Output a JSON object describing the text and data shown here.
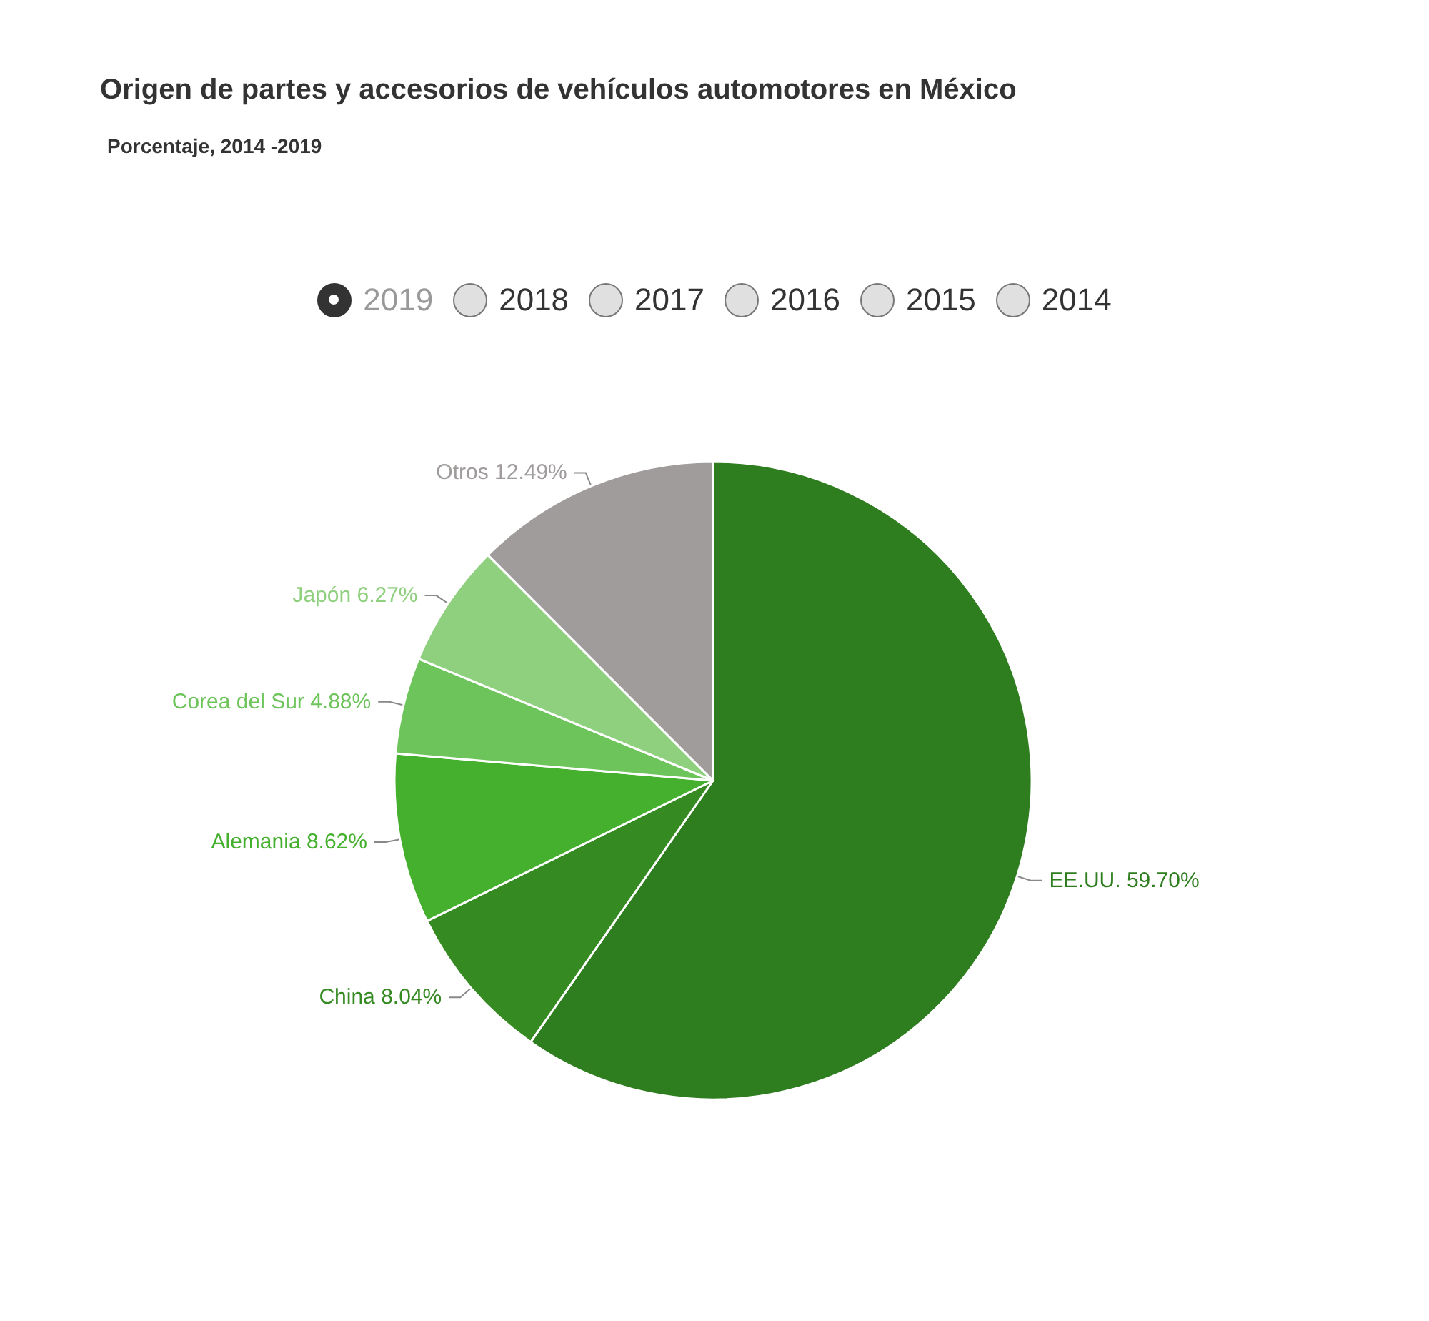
{
  "chart_data": {
    "type": "pie",
    "title": "Origen de partes y accesorios de vehículos automotores en México",
    "subtitle": "Porcentaje, 2014 -2019",
    "annotations": [
      "2019",
      "2018",
      "2017",
      "2016",
      "2015",
      "2014"
    ],
    "categories": [
      "EE.UU.",
      "China",
      "Alemania",
      "Corea del Sur",
      "Japón",
      "Otros"
    ],
    "values": [
      59.7,
      8.04,
      8.62,
      4.88,
      6.27,
      12.49
    ],
    "value_labels": [
      "59.70%",
      "8.04%",
      "8.62%",
      "4.88%",
      "6.27%",
      "12.49%"
    ],
    "colors": [
      "#2e7d1f",
      "#368a22",
      "#45b02e",
      "#6cc45a",
      "#8fd07f",
      "#a09c9c"
    ],
    "legend": false
  }
}
